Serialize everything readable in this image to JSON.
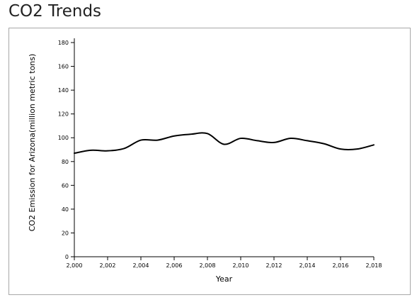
{
  "page": {
    "title": "CO2 Trends"
  },
  "chart_data": {
    "type": "line",
    "title": "",
    "xlabel": "Year",
    "ylabel": "CO2 Emission for Arizona(million metric tons)",
    "xlim": [
      2000,
      2018
    ],
    "ylim": [
      0,
      180
    ],
    "x_ticks": [
      2000,
      2002,
      2004,
      2006,
      2008,
      2010,
      2012,
      2014,
      2016,
      2018
    ],
    "x_tick_labels": [
      "2,000",
      "2,002",
      "2,004",
      "2,006",
      "2,008",
      "2,010",
      "2,012",
      "2,014",
      "2,016",
      "2,018"
    ],
    "y_ticks": [
      0,
      20,
      40,
      60,
      80,
      100,
      120,
      140,
      160,
      180
    ],
    "y_tick_labels": [
      "0",
      "20",
      "40",
      "60",
      "80",
      "100",
      "120",
      "140",
      "160",
      "180"
    ],
    "grid": false,
    "series": [
      {
        "color": "#000000",
        "x": [
          2000,
          2001,
          2002,
          2003,
          2004,
          2005,
          2006,
          2007,
          2008,
          2009,
          2010,
          2011,
          2012,
          2013,
          2014,
          2015,
          2016,
          2017,
          2018
        ],
        "y": [
          87,
          89.5,
          89,
          91,
          98,
          98,
          101.5,
          103,
          103.5,
          94.5,
          99.5,
          97.5,
          96,
          99.5,
          97.5,
          95,
          90.5,
          90.5,
          94
        ]
      }
    ]
  }
}
